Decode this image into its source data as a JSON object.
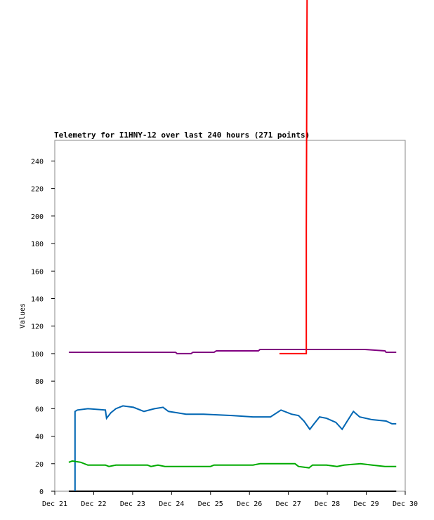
{
  "chart_data": {
    "type": "line",
    "title": "Telemetry for I1HNY-12 over last 240 hours (271 points)",
    "y_label": "Values",
    "xlim": [
      21,
      30
    ],
    "xticks": [
      {
        "value": 21,
        "label": "Dec 21"
      },
      {
        "value": 22,
        "label": "Dec 22"
      },
      {
        "value": 23,
        "label": "Dec 23"
      },
      {
        "value": 24,
        "label": "Dec 24"
      },
      {
        "value": 25,
        "label": "Dec 25"
      },
      {
        "value": 26,
        "label": "Dec 26"
      },
      {
        "value": 27,
        "label": "Dec 27"
      },
      {
        "value": 28,
        "label": "Dec 28"
      },
      {
        "value": 29,
        "label": "Dec 29"
      },
      {
        "value": 30,
        "label": "Dec 30"
      }
    ],
    "ylim": [
      0,
      255
    ],
    "yticks": [
      0,
      20,
      40,
      60,
      80,
      100,
      120,
      140,
      160,
      180,
      200,
      220,
      240
    ],
    "series": [
      {
        "color": "#000000",
        "x": [
          21.36,
          29.77
        ],
        "values": [
          0,
          0
        ]
      },
      {
        "color": "#0066b3",
        "x": [
          21.52,
          21.52,
          21.58,
          21.85,
          22.3,
          22.33,
          22.44,
          22.57,
          22.75,
          23.02,
          23.29,
          23.56,
          23.78,
          23.92,
          24.37,
          24.82,
          25.55,
          26.09,
          26.54,
          26.81,
          27.08,
          27.26,
          27.4,
          27.55,
          27.66,
          27.8,
          27.98,
          28.22,
          28.38,
          28.49,
          28.67,
          28.83,
          29.15,
          29.51,
          29.66,
          29.77
        ],
        "values": [
          0,
          58,
          59,
          60,
          59,
          53,
          57,
          60,
          62,
          61,
          58,
          60,
          61,
          58,
          56,
          56,
          55,
          54,
          54,
          59,
          56,
          55,
          51,
          45,
          49,
          54,
          53,
          50,
          45,
          50,
          58,
          54,
          52,
          51,
          49,
          49
        ]
      },
      {
        "color": "#00aa00",
        "x": [
          21.36,
          21.45,
          21.67,
          21.85,
          22.3,
          22.39,
          22.57,
          23.38,
          23.47,
          23.65,
          23.83,
          25.0,
          25.09,
          26.09,
          26.27,
          27.17,
          27.26,
          27.53,
          27.62,
          27.98,
          28.25,
          28.43,
          28.85,
          29.15,
          29.48,
          29.77
        ],
        "values": [
          21,
          22,
          21,
          19,
          19,
          18,
          19,
          19,
          18,
          19,
          18,
          18,
          19,
          19,
          20,
          20,
          18,
          17,
          19,
          19,
          18,
          19,
          20,
          19,
          18,
          18
        ]
      },
      {
        "color": "#800080",
        "x": [
          21.36,
          24.1,
          24.14,
          24.5,
          24.55,
          25.09,
          25.15,
          26.23,
          26.27,
          26.81,
          28.97,
          29.48,
          29.51,
          29.77
        ],
        "values": [
          101,
          101,
          100,
          100,
          101,
          101,
          102,
          102,
          103,
          103,
          103,
          102,
          101,
          101
        ]
      },
      {
        "color": "#ff0000",
        "x": [
          26.77,
          27.46,
          27.46,
          27.48
        ],
        "values": [
          100,
          100,
          190,
          360
        ]
      }
    ]
  }
}
